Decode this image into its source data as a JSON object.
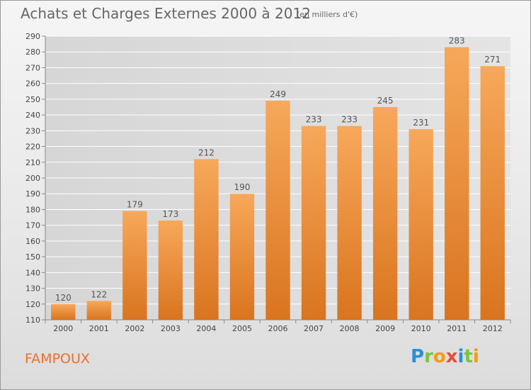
{
  "header": {
    "title": "Achats et Charges Externes 2000 à 2012",
    "subtitle": "(en milliers d'€)"
  },
  "footer": {
    "town": "FAMPOUX",
    "logo": {
      "letters": [
        "P",
        "r",
        "o",
        "x",
        "i",
        "t",
        "i"
      ],
      "colors": [
        "#2a8fd6",
        "#7cc242",
        "#f39c12",
        "#e74c3c",
        "#2a8fd6",
        "#7cc242",
        "#f39c12"
      ]
    }
  },
  "chart_data": {
    "type": "bar",
    "title": "Achats et Charges Externes 2000 à 2012",
    "subtitle": "(en milliers d'€)",
    "categories": [
      "2000",
      "2001",
      "2002",
      "2003",
      "2004",
      "2005",
      "2006",
      "2007",
      "2008",
      "2009",
      "2010",
      "2011",
      "2012"
    ],
    "values": [
      120,
      122,
      179,
      173,
      212,
      190,
      249,
      233,
      233,
      245,
      231,
      283,
      271
    ],
    "ylim": [
      110,
      290
    ],
    "yticks": [
      110,
      120,
      130,
      140,
      150,
      160,
      170,
      180,
      190,
      200,
      210,
      220,
      230,
      240,
      250,
      260,
      270,
      280,
      290
    ],
    "grid": true,
    "bar_color_top": "#f7a85a",
    "bar_color_bottom": "#d9741f",
    "label_color": "#555555"
  }
}
